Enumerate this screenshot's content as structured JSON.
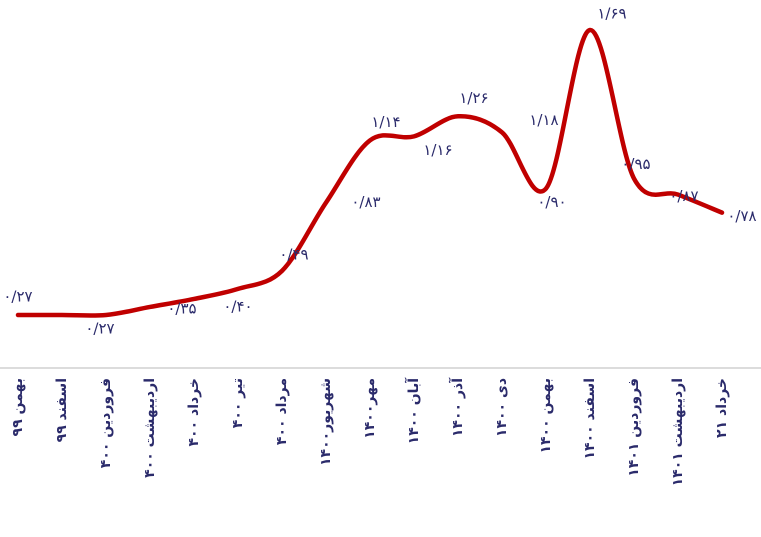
{
  "chart_data": {
    "type": "line",
    "categories": [
      "بهمن ۹۹",
      "اسفند ۹۹",
      "فروردین ۴۰۰",
      "اردیبهشت ۴۰۰",
      "خرداد ۴۰۰",
      "تیر ۴۰۰",
      "مرداد ۴۰۰",
      "شهریور۱۴۰۰",
      "مهر۱۴۰۰",
      "۱۴۰۰ آبان",
      "۱۴۰۰ آذر",
      "دی ۱۴۰۰",
      "۱۴۰۰ بهمن",
      "۱۴۰۰ اسفند",
      "۱۴۰۱ فروردین",
      "۱۴۰۱ اردیبهشت",
      "۲۱ خرداد"
    ],
    "series": [
      {
        "color": "#c00000",
        "values": [
          0.27,
          0.27,
          0.27,
          0.31,
          0.35,
          0.4,
          0.49,
          0.83,
          1.14,
          1.16,
          1.26,
          1.18,
          0.9,
          1.69,
          0.95,
          0.87,
          0.78
        ],
        "value_labels": [
          "۰/۲۷",
          null,
          "۰/۲۷",
          null,
          "۰/۳۵",
          "۰/۴۰",
          "۰/۴۹",
          "۰/۸۳",
          "۱/۱۴",
          "۱/۱۶",
          "۱/۲۶",
          "۱/۱۸",
          "۰/۹۰",
          "۱/۶۹",
          "۰/۹۵",
          "۰/۸۷",
          "۰/۷۸"
        ]
      }
    ],
    "ylim": [
      0.27,
      1.69
    ]
  }
}
